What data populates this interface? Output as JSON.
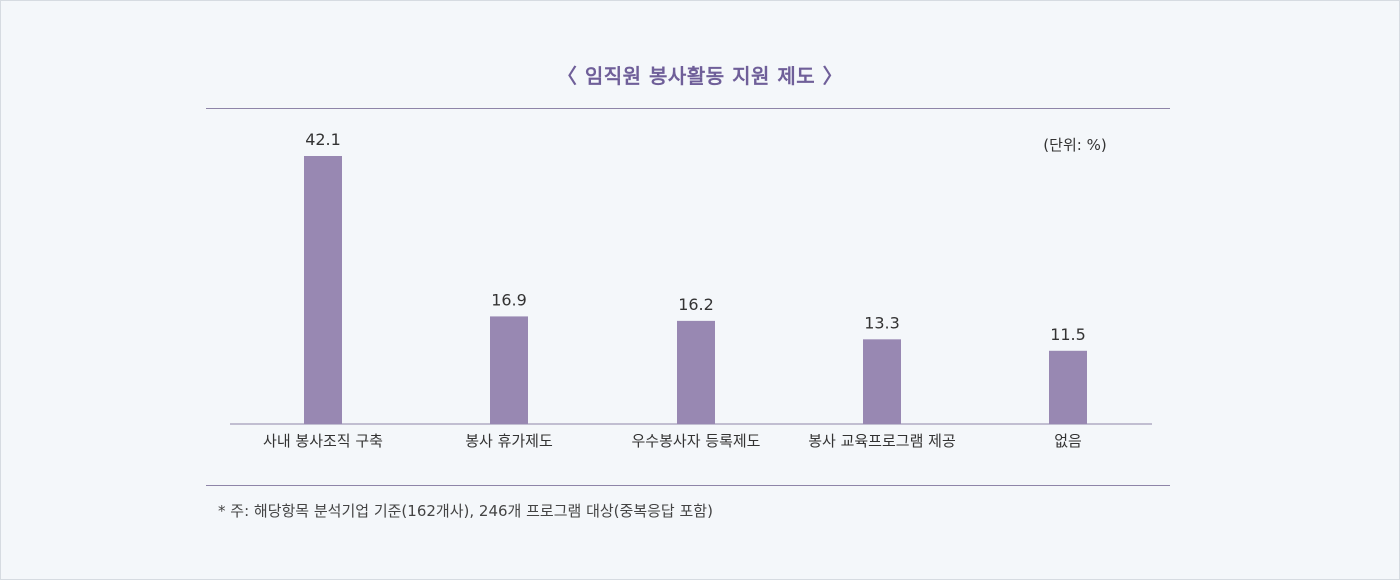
{
  "chart_data": {
    "type": "bar",
    "title": "〈 임직원 봉사활동 지원 제도 〉",
    "unit_label": "(단위: %)",
    "categories": [
      "사내 봉사조직 구축",
      "봉사 휴가제도",
      "우수봉사자 등록제도",
      "봉사 교육프로그램 제공",
      "없음"
    ],
    "values": [
      42.1,
      16.9,
      16.2,
      13.3,
      11.5
    ],
    "value_labels": [
      "42.1",
      "16.9",
      "16.2",
      "13.3",
      "11.5"
    ],
    "ylim": [
      0,
      42.1
    ],
    "grid": false,
    "legend": "none",
    "bar_color": "#9888b2",
    "axis_color": "#8e85a8",
    "title_color": "#6f5f99"
  },
  "footnote": "* 주: 해당항목 분석기업 기준(162개사), 246개 프로그램 대상(중복응답 포함)"
}
